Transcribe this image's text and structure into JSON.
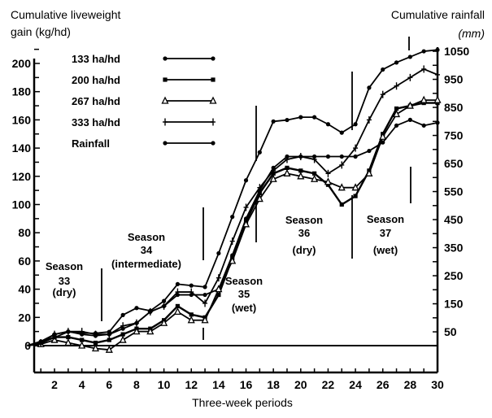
{
  "chart_data": {
    "type": "line",
    "title": "",
    "xlabel": "Three-week periods",
    "ylabel_left": "Cumulative liveweight gain (kg/hd)",
    "ylabel_right_line1": "Cumulative rainfall",
    "ylabel_right_line2": "(mm)",
    "ylabel_left_line1": "Cumulative liveweight",
    "ylabel_left_line2": "gain (kg/hd)",
    "xlim": [
      0,
      30
    ],
    "ylim_left": [
      -12,
      210
    ],
    "ylim_right": [
      0,
      1100
    ],
    "x_ticks": [
      2,
      4,
      6,
      8,
      10,
      12,
      14,
      16,
      18,
      20,
      22,
      24,
      26,
      28,
      30
    ],
    "y_left_ticks": [
      0,
      20,
      40,
      60,
      80,
      100,
      120,
      140,
      160,
      180,
      200
    ],
    "y_right_ticks": [
      50,
      150,
      250,
      350,
      450,
      550,
      650,
      750,
      850,
      950,
      1050
    ],
    "grid": false,
    "legend_placement": "top-left",
    "x": [
      0,
      1,
      2,
      3,
      4,
      5,
      6,
      7,
      8,
      9,
      10,
      11,
      12,
      13,
      14,
      15,
      16,
      17,
      18,
      19,
      20,
      21,
      22,
      23,
      24,
      25,
      26,
      27,
      28,
      29,
      30
    ],
    "series": [
      {
        "name": "133 ha/hd",
        "axis": "left",
        "marker": "dot",
        "values": [
          0,
          3,
          8,
          10,
          8,
          7,
          8,
          12,
          16,
          24,
          28,
          36,
          36,
          36,
          40,
          64,
          90,
          110,
          126,
          134,
          134,
          134,
          134,
          134,
          134,
          138,
          144,
          156,
          160,
          156,
          158
        ]
      },
      {
        "name": "200 ha/hd",
        "axis": "left",
        "marker": "square",
        "values": [
          0,
          2,
          6,
          6,
          4,
          2,
          4,
          8,
          12,
          12,
          18,
          28,
          22,
          20,
          36,
          62,
          88,
          108,
          122,
          126,
          124,
          122,
          114,
          100,
          106,
          124,
          150,
          168,
          170,
          172,
          172
        ]
      },
      {
        "name": "267 ha/hd",
        "axis": "left",
        "marker": "triangle",
        "values": [
          0,
          1,
          4,
          2,
          0,
          -2,
          -3,
          4,
          10,
          10,
          16,
          24,
          18,
          18,
          40,
          60,
          86,
          104,
          118,
          122,
          120,
          118,
          116,
          112,
          112,
          122,
          148,
          164,
          170,
          174,
          174
        ]
      },
      {
        "name": "333 ha/hd",
        "axis": "left",
        "marker": "plus",
        "values": [
          0,
          2,
          8,
          10,
          10,
          8,
          8,
          14,
          16,
          24,
          28,
          38,
          38,
          30,
          48,
          74,
          98,
          112,
          124,
          132,
          134,
          132,
          122,
          128,
          140,
          160,
          178,
          184,
          190,
          196,
          192
        ]
      },
      {
        "name": "Rainfall",
        "axis": "right",
        "marker": "dot",
        "values": [
          0,
          10,
          30,
          50,
          45,
          45,
          50,
          110,
          135,
          125,
          160,
          220,
          215,
          210,
          330,
          460,
          590,
          690,
          800,
          805,
          815,
          815,
          790,
          760,
          790,
          920,
          985,
          1010,
          1030,
          1050,
          1055
        ]
      }
    ],
    "annotations": [
      {
        "label": [
          "Season",
          "33",
          "(dry)"
        ]
      },
      {
        "label": [
          "Season",
          "34",
          "(intermediate)"
        ]
      },
      {
        "label": [
          "Season",
          "35",
          "(wet)"
        ]
      },
      {
        "label": [
          "Season",
          "36",
          "(dry)"
        ]
      },
      {
        "label": [
          "Season",
          "37",
          "(wet)"
        ]
      }
    ],
    "season_boundaries_period": [
      5.5,
      12.5,
      16.5,
      23.5,
      27.5
    ]
  }
}
